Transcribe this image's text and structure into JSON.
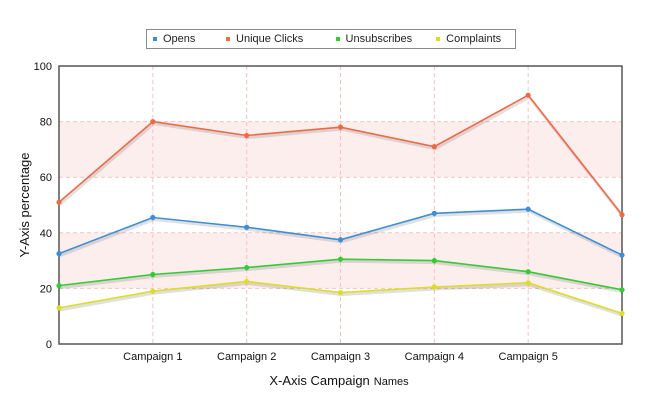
{
  "chart_data": {
    "type": "line",
    "categories": [
      "",
      "Campaign 1",
      "Campaign 2",
      "Campaign 3",
      "Campaign 4",
      "Campaign 5",
      ""
    ],
    "series": [
      {
        "name": "Opens",
        "color": "#3a8fd6",
        "values": [
          32.5,
          45.5,
          42,
          37.5,
          47,
          48.5,
          32
        ]
      },
      {
        "name": "Unique Clicks",
        "color": "#ee6a45",
        "values": [
          51,
          80,
          75,
          78,
          71,
          89.5,
          46.5
        ]
      },
      {
        "name": "Unsubscribes",
        "color": "#33cc33",
        "values": [
          21,
          25,
          27.5,
          30.5,
          30,
          26,
          19.5
        ]
      },
      {
        "name": "Complaints",
        "color": "#dddd22",
        "values": [
          13,
          19,
          22.5,
          18.5,
          20.5,
          22,
          11
        ]
      }
    ],
    "ylim": [
      0,
      100
    ],
    "yticks": [
      "0",
      "20",
      "40",
      "60",
      "80",
      "100"
    ],
    "ylabel": "Y-Axis  percentage",
    "xlabel_main": "X-Axis Campaign",
    "xlabel_suffix": "Names",
    "grid": true,
    "band_color": "#fdeeee",
    "legend_position": "top"
  }
}
